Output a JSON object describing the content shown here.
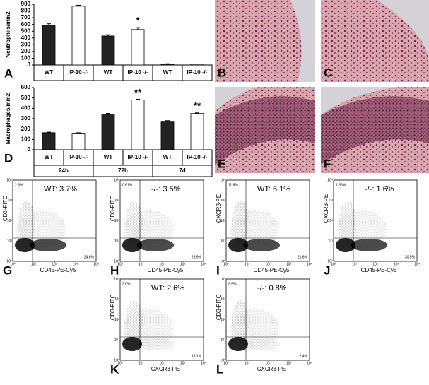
{
  "chart_data": [
    {
      "type": "bar",
      "ylabel": "Neutrophils/mm2",
      "categories": [
        "WT",
        "IP-10 -/-",
        "WT",
        "IP-10 -/-",
        "WT",
        "IP-10 -/-"
      ],
      "values": [
        590,
        870,
        430,
        525,
        15,
        12
      ],
      "errors": [
        20,
        15,
        18,
        28,
        3,
        3
      ],
      "colors": [
        "#222222",
        "#ffffff",
        "#222222",
        "#ffffff",
        "#222222",
        "#ffffff"
      ],
      "annotations": [
        null,
        null,
        null,
        "*",
        null,
        null
      ],
      "ylim": [
        0,
        900
      ],
      "yticks": [
        0,
        100,
        200,
        300,
        400,
        500,
        600,
        700,
        800,
        900
      ],
      "panel": "A"
    },
    {
      "type": "bar",
      "ylabel": "Macrophages/mm2",
      "categories": [
        "WT",
        "IP-10 -/-",
        "WT",
        "IP-10 -/-",
        "WT",
        "IP-10 -/-"
      ],
      "values": [
        165,
        160,
        345,
        480,
        275,
        350
      ],
      "errors": [
        5,
        4,
        6,
        8,
        6,
        6
      ],
      "colors": [
        "#222222",
        "#ffffff",
        "#222222",
        "#ffffff",
        "#222222",
        "#ffffff"
      ],
      "annotations": [
        null,
        null,
        null,
        "**",
        null,
        "**"
      ],
      "groups": [
        "24h",
        "72h",
        "7d"
      ],
      "ylim": [
        0,
        600
      ],
      "yticks": [
        0,
        100,
        200,
        300,
        400,
        500,
        600
      ],
      "panel": "D"
    }
  ],
  "images": [
    "B",
    "C",
    "E",
    "F"
  ],
  "flow_ticks": [
    "10⁰",
    "10¹",
    "10²",
    "10³",
    "10⁴"
  ],
  "flow_panels": [
    {
      "letter": "G",
      "title": "WT: 3.7%",
      "ylabel": "CD3-FITC",
      "xlabel": "CD45-PE-Cy5",
      "upper_left": "2.8%",
      "lower_right": "24.6%"
    },
    {
      "letter": "H",
      "title": "-/-: 3.5%",
      "ylabel": "CD3-FITC",
      "xlabel": "CD45-PE-Cy5",
      "upper_left": "0.61%",
      "lower_right": "28.9%"
    },
    {
      "letter": "I",
      "title": "WT: 6.1%",
      "ylabel": "CXCR3-PE",
      "xlabel": "CD45-PE-Cy5",
      "upper_left": "11.9%",
      "lower_right": "21.6%"
    },
    {
      "letter": "J",
      "title": "-/-: 1.6%",
      "ylabel": "CXCR3-PE",
      "xlabel": "CD45-PE-Cy5",
      "upper_left": "1.56%",
      "lower_right": "30.5%"
    },
    {
      "letter": "K",
      "title": "WT: 2.6%",
      "ylabel": "CD3-FITC",
      "xlabel": "CXCR3-PE",
      "upper_left": "3.0%",
      "lower_right": "15.1%"
    },
    {
      "letter": "L",
      "title": "-/-: 0.8%",
      "ylabel": "CD3-FITC",
      "xlabel": "CXCR3-PE",
      "upper_left": "3.5%",
      "lower_right": "2.4%"
    }
  ]
}
